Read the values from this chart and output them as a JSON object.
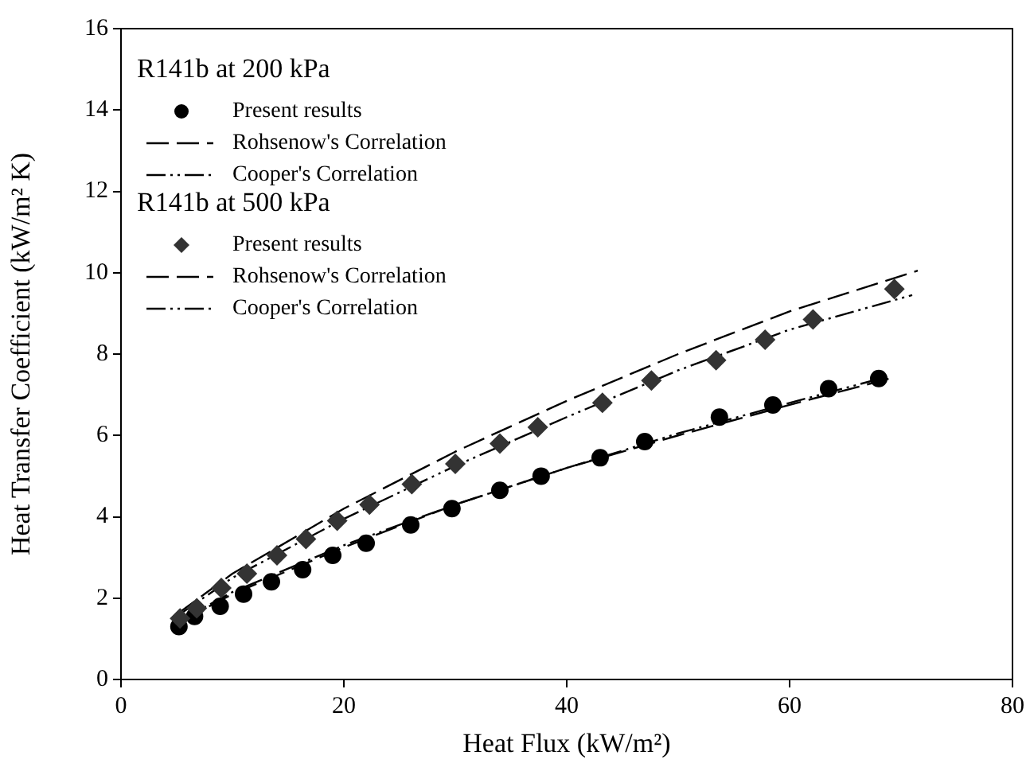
{
  "chart_data": {
    "type": "scatter",
    "xlabel": "Heat Flux (kW/m²)",
    "ylabel": "Heat Transfer Coefficient (kW/m² K)",
    "xlim": [
      0,
      80
    ],
    "xticks": [
      0,
      20,
      40,
      60,
      80
    ],
    "ylim": [
      0,
      16
    ],
    "yticks": [
      0,
      2,
      4,
      6,
      8,
      10,
      12,
      14,
      16
    ],
    "grid": false,
    "legend": "top left",
    "annotations": [
      "R141b at 200 kPa",
      "R141b at 500 kPa"
    ],
    "series": [
      {
        "name": "Present results",
        "marker": "circle",
        "color": "#000000",
        "x": [
          5.2,
          6.6,
          8.9,
          11,
          13.5,
          16.3,
          19,
          22,
          26,
          29.7,
          34,
          37.7,
          43,
          47,
          53.7,
          58.5,
          63.5,
          68
        ],
        "values": [
          1.3,
          1.55,
          1.8,
          2.1,
          2.4,
          2.7,
          3.05,
          3.35,
          3.8,
          4.2,
          4.65,
          5.0,
          5.45,
          5.85,
          6.45,
          6.75,
          7.15,
          7.4
        ]
      },
      {
        "name": "Rohsenow's Correlation",
        "type": "line",
        "line_style": "dashed",
        "color": "#000000",
        "x": [
          5.5,
          10,
          20,
          30,
          40,
          50,
          60,
          69
        ],
        "values": [
          1.45,
          2.1,
          3.25,
          4.3,
          5.2,
          6.0,
          6.75,
          7.4
        ]
      },
      {
        "name": "Cooper's Correlation",
        "type": "line",
        "line_style": "dotted",
        "color": "#000000",
        "x": [
          5,
          10,
          20,
          30,
          40,
          50,
          60,
          67.5
        ],
        "values": [
          1.4,
          2.15,
          3.3,
          4.3,
          5.2,
          6.05,
          6.8,
          7.35
        ]
      },
      {
        "name": "Present results",
        "marker": "diamond",
        "color": "#333333",
        "x": [
          5.3,
          6.8,
          9,
          11.3,
          14,
          16.6,
          19.4,
          22.3,
          26.1,
          30,
          34,
          37.4,
          43.2,
          47.6,
          53.4,
          57.8,
          62.1,
          69.4
        ],
        "values": [
          1.5,
          1.75,
          2.25,
          2.6,
          3.05,
          3.45,
          3.9,
          4.3,
          4.8,
          5.3,
          5.8,
          6.2,
          6.8,
          7.35,
          7.85,
          8.35,
          8.85,
          9.6
        ]
      },
      {
        "name": "Rohsenow's Correlation",
        "type": "line",
        "line_style": "dashed",
        "color": "#000000",
        "x": [
          5,
          10,
          20,
          30,
          40,
          50,
          60,
          71.5
        ],
        "values": [
          1.6,
          2.6,
          4.2,
          5.6,
          6.85,
          8.0,
          9.05,
          10.05
        ]
      },
      {
        "name": "Cooper's Correlation",
        "type": "line",
        "line_style": "dotted",
        "color": "#000000",
        "x": [
          5,
          10,
          20,
          30,
          40,
          50,
          60,
          71
        ],
        "values": [
          1.55,
          2.5,
          3.95,
          5.25,
          6.45,
          7.6,
          8.6,
          9.45
        ]
      }
    ]
  }
}
